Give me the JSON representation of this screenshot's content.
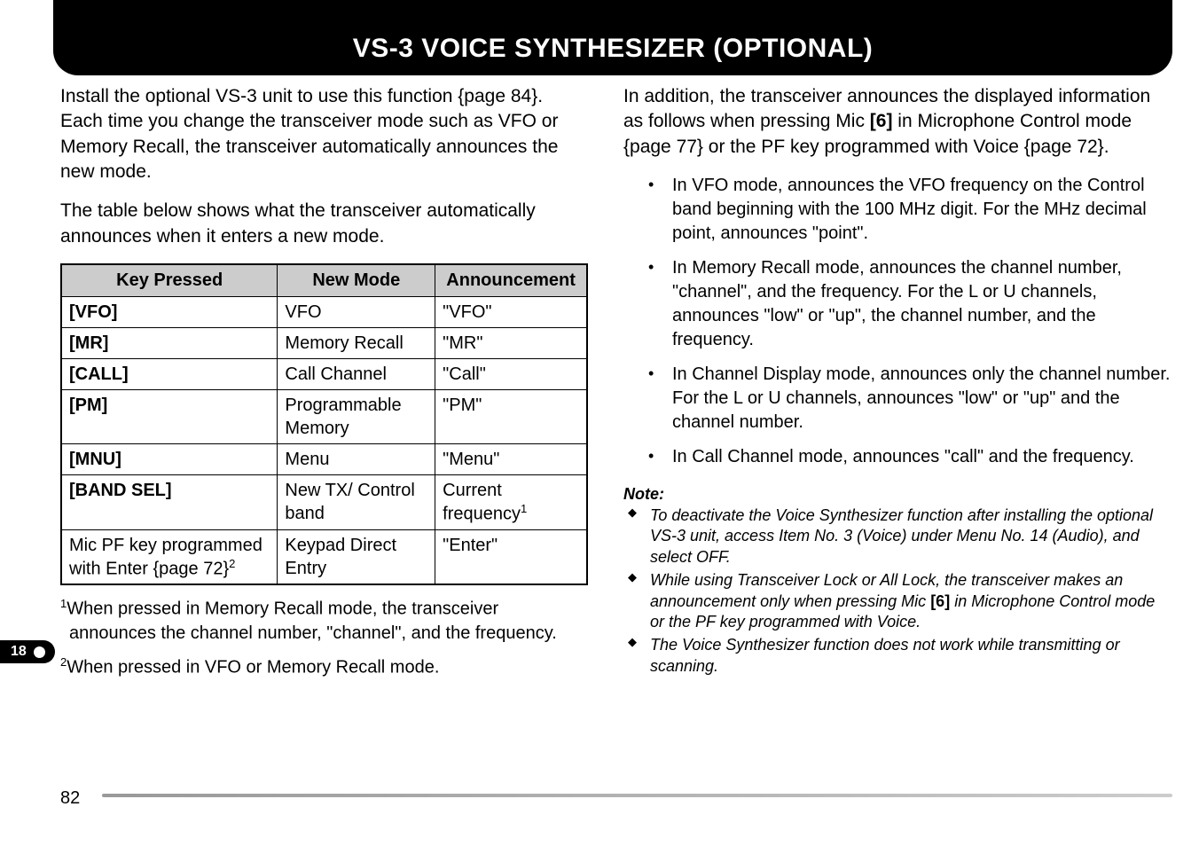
{
  "header": {
    "title": "VS-3 VOICE SYNTHESIZER (OPTIONAL)"
  },
  "side_tab": "18",
  "page_number": "82",
  "left": {
    "para1": "Install the optional VS-3 unit to use this function {page 84}. Each time you change the transceiver mode such as VFO or Memory Recall, the transceiver automatically announces the new mode.",
    "para2": "The table below shows what the transceiver automatically announces when it enters a new mode.",
    "table": {
      "headers": [
        "Key Pressed",
        "New Mode",
        "Announcement"
      ],
      "rows": [
        {
          "key": "[VFO]",
          "mode": "VFO",
          "ann": "\"VFO\""
        },
        {
          "key": "[MR]",
          "mode": "Memory Recall",
          "ann": "\"MR\""
        },
        {
          "key": "[CALL]",
          "mode": "Call Channel",
          "ann": "\"Call\""
        },
        {
          "key": "[PM]",
          "mode": "Programmable Memory",
          "ann": "\"PM\""
        },
        {
          "key": "[MNU]",
          "mode": "Menu",
          "ann": "\"Menu\""
        },
        {
          "key": "[BAND SEL]",
          "mode": "New TX/ Control band",
          "ann": "Current frequency",
          "ann_sup": "1"
        },
        {
          "key_plain": "Mic PF key programmed with Enter {page 72}",
          "key_sup": "2",
          "mode": "Keypad Direct Entry",
          "ann": "\"Enter\""
        }
      ]
    },
    "footnote1_sup": "1",
    "footnote1": "When pressed in Memory Recall mode, the transceiver announces the channel number, \"channel\", and the frequency.",
    "footnote2_sup": "2",
    "footnote2": "When pressed in VFO or Memory Recall mode."
  },
  "right": {
    "para1_a": "In addition, the transceiver announces the displayed information as follows when pressing Mic ",
    "para1_bold": "[6]",
    "para1_b": " in Microphone Control mode {page 77} or the PF key programmed with Voice {page 72}.",
    "bullets": [
      "In VFO mode, announces the VFO frequency on the Control band beginning with the 100 MHz digit.  For the MHz decimal point, announces \"point\".",
      "In Memory Recall mode, announces the channel number, \"channel\", and the frequency.  For the L or U channels, announces \"low\" or \"up\", the channel number, and the frequency.",
      "In Channel Display mode, announces only the channel number.  For the L or U channels, announces \"low\" or \"up\" and the channel number.",
      "In Call Channel mode, announces \"call\" and the frequency."
    ],
    "note_heading": "Note:",
    "notes": [
      {
        "text": "To deactivate the Voice Synthesizer function after installing the optional VS-3 unit, access Item No. 3 (Voice) under Menu No. 14 (Audio), and select OFF."
      },
      {
        "text_a": "While using Transceiver Lock or All Lock, the transceiver makes an announcement only when pressing Mic ",
        "bold": "[6]",
        "text_b": " in Microphone Control mode or the PF key programmed with Voice."
      },
      {
        "text": "The Voice Synthesizer function does not work while transmitting or scanning."
      }
    ]
  }
}
